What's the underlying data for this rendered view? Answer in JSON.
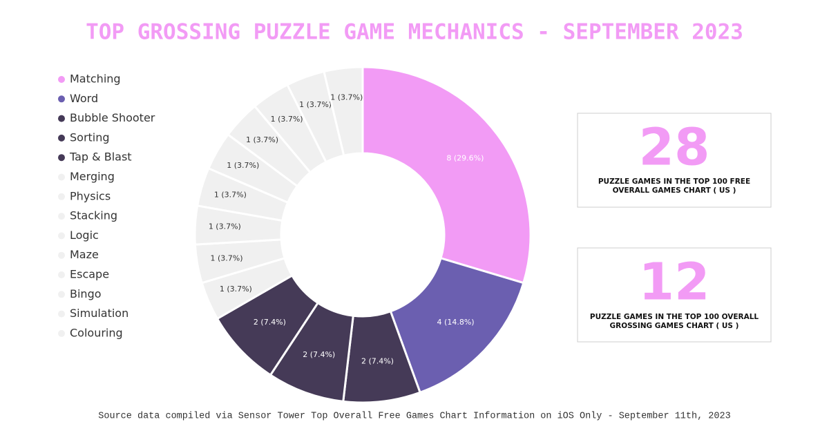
{
  "chart_data": {
    "type": "pie",
    "title": "TOP GROSSING PUZZLE GAME MECHANICS - SEPTEMBER 2023",
    "categories": [
      "Matching",
      "Word",
      "Bubble Shooter",
      "Sorting",
      "Tap & Blast",
      "Merging",
      "Physics",
      "Stacking",
      "Logic",
      "Maze",
      "Escape",
      "Bingo",
      "Simulation",
      "Colouring"
    ],
    "values": [
      8,
      4,
      2,
      2,
      2,
      1,
      1,
      1,
      1,
      1,
      1,
      1,
      1,
      1
    ],
    "value_labels": [
      "8 (29.6%)",
      "4 (14.8%)",
      "2 (7.4%)",
      "2 (7.4%)",
      "2 (7.4%)",
      "1 (3.7%)",
      "1 (3.7%)",
      "1 (3.7%)",
      "1 (3.7%)",
      "1 (3.7%)",
      "1 (3.7%)",
      "1 (3.7%)",
      "1 (3.7%)",
      "1 (3.7%)"
    ],
    "colors": [
      "#f29bf5",
      "#6b5fb0",
      "#453a57",
      "#453a57",
      "#453a57",
      "#f0f0f0",
      "#f0f0f0",
      "#f0f0f0",
      "#f0f0f0",
      "#f0f0f0",
      "#f0f0f0",
      "#f0f0f0",
      "#f0f0f0",
      "#f0f0f0"
    ],
    "legend": "left"
  },
  "stats": [
    {
      "value": 28,
      "lines": [
        "PUZZLE GAMES IN THE TOP 100 FREE",
        "OVERALL GAMES CHART ( US )"
      ]
    },
    {
      "value": 12,
      "lines": [
        "PUZZLE GAMES IN THE TOP 100 OVERALL",
        "GROSSING GAMES CHART ( US )"
      ]
    }
  ],
  "source": "Source data compiled via Sensor Tower Top Overall Free Games Chart Information on iOS Only - September 11th, 2023"
}
